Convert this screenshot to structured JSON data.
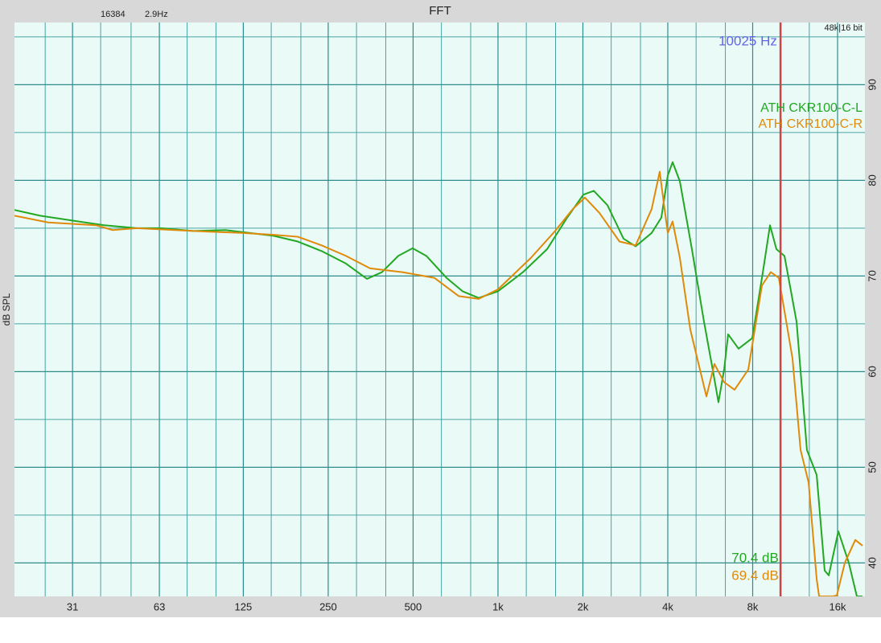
{
  "chart_data": {
    "type": "line",
    "title": "FFT",
    "fft_size": "16384",
    "resolution": "2.9Hz",
    "format": "48k|16 bit",
    "ylabel": "dB SPL",
    "xscale": "log",
    "grid": true,
    "legend": "upper right",
    "xlim": [
      19.3,
      20000
    ],
    "ylim": [
      36.5,
      96.5
    ],
    "xticks": [
      31,
      63,
      125,
      250,
      500,
      {
        "value": 1000,
        "label": "1k"
      },
      {
        "value": 2000,
        "label": "2k"
      },
      {
        "value": 4000,
        "label": "4k"
      },
      {
        "value": 8000,
        "label": "8k"
      },
      {
        "value": 16000,
        "label": "16k"
      }
    ],
    "yticks": [
      40,
      50,
      60,
      70,
      80,
      90
    ],
    "xgrid_minor": [
      24.8,
      39,
      50,
      79,
      100,
      157,
      200,
      315,
      400,
      630,
      800,
      1260,
      1600,
      2520,
      3200,
      5040,
      6400,
      10100,
      12700
    ],
    "ygrid_minor": [
      45,
      55,
      65,
      75,
      85,
      95
    ],
    "cursor": {
      "value": 10025,
      "label": "10025 Hz",
      "color": "#e03a3a",
      "label_color": "#6464e8"
    },
    "series": [
      {
        "name": "ATH CKR100-C-L",
        "color": "#22a822",
        "readout": {
          "value": 70.4,
          "label": "70.4 dB"
        },
        "x": [
          19.3,
          23.8,
          30.9,
          40.2,
          52.4,
          63.8,
          83.0,
          108,
          131,
          160,
          195,
          237,
          289,
          343,
          388,
          443,
          498,
          557,
          657,
          749,
          854,
          1000,
          1226,
          1493,
          1759,
          2007,
          2186,
          2444,
          2787,
          3076,
          3507,
          3795,
          4000,
          4161,
          4414,
          4871,
          5377,
          5741,
          6050,
          6336,
          6547,
          7130,
          7973,
          8683,
          9215,
          9711,
          10370,
          11450,
          12460,
          13490,
          14400,
          14890,
          16100,
          17540,
          18730,
          19620
        ],
        "values": [
          76.9,
          76.3,
          75.8,
          75.3,
          75.0,
          75.0,
          74.7,
          74.8,
          74.5,
          74.2,
          73.6,
          72.6,
          71.3,
          69.7,
          70.4,
          72.1,
          72.9,
          72.1,
          69.8,
          68.4,
          67.7,
          68.4,
          70.4,
          72.8,
          76.1,
          78.5,
          78.9,
          77.4,
          73.9,
          73.1,
          74.5,
          76.1,
          80.5,
          81.9,
          79.9,
          72.8,
          65.2,
          60.6,
          56.8,
          60.2,
          63.9,
          62.4,
          63.5,
          70.3,
          75.3,
          72.8,
          72.1,
          65.2,
          51.8,
          49.2,
          39.2,
          38.7,
          43.3,
          40.0,
          36.5,
          36.5
        ]
      },
      {
        "name": "ATH CKR100-C-R",
        "color": "#e08a0a",
        "readout": {
          "value": 69.4,
          "label": "69.4 dB"
        },
        "x": [
          19.3,
          25.4,
          37.6,
          43.0,
          52.4,
          83.0,
          123,
          160,
          195,
          237,
          289,
          352,
          458,
          595,
          725,
          854,
          1000,
          1309,
          1594,
          1843,
          2033,
          2288,
          2697,
          3076,
          3507,
          3745,
          3896,
          4000,
          4161,
          4414,
          4807,
          5484,
          5855,
          6336,
          6900,
          7716,
          8628,
          9273,
          9905,
          11070,
          11830,
          12630,
          13490,
          13760,
          15380,
          15900,
          16970,
          18490,
          19620
        ],
        "values": [
          76.3,
          75.6,
          75.3,
          74.8,
          75.0,
          74.7,
          74.5,
          74.3,
          74.1,
          73.2,
          72.1,
          70.8,
          70.4,
          69.8,
          67.9,
          67.6,
          68.6,
          71.9,
          74.7,
          77.0,
          78.2,
          76.6,
          73.6,
          73.2,
          77.0,
          80.9,
          77.0,
          74.5,
          75.7,
          71.9,
          64.4,
          57.4,
          60.8,
          58.9,
          58.1,
          60.2,
          69.0,
          70.4,
          69.8,
          61.4,
          51.8,
          48.4,
          38.3,
          36.5,
          36.5,
          36.6,
          40.0,
          42.4,
          41.8
        ]
      }
    ]
  }
}
